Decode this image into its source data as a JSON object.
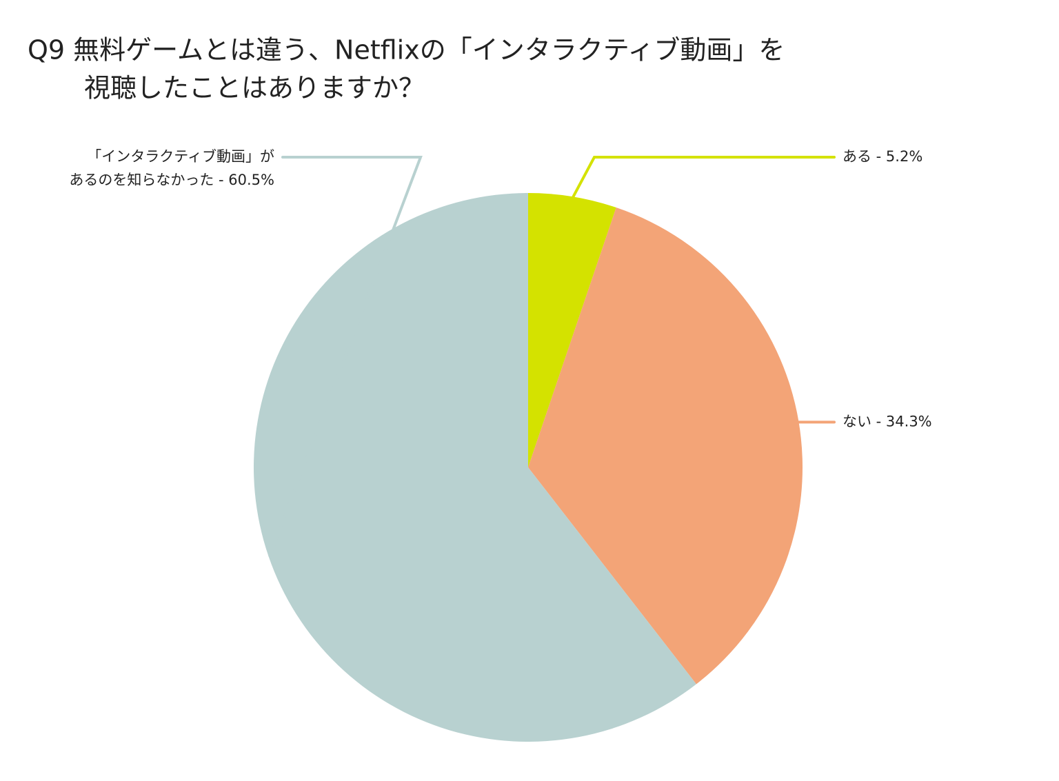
{
  "chart_data": {
    "type": "pie",
    "title": [
      "Q9 無料ゲームとは違う、Netflixの「インタラクティブ動画」を",
      "視聴したことはありますか？"
    ],
    "values": [
      5.2,
      34.3,
      60.5
    ],
    "value_labels": [
      [
        "ある - 5.2%"
      ],
      [
        "ない - 34.3%"
      ],
      [
        "「インタラクティブ動画」が",
        "あるのを知らなかった - 60.5%"
      ]
    ],
    "colors": [
      "#d4e200",
      "#f3a477",
      "#b8d1d0"
    ]
  }
}
